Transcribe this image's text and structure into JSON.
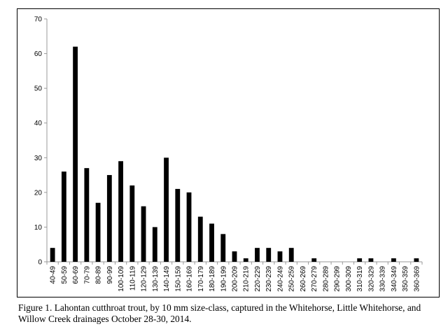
{
  "caption": "Figure 1. Lahontan cutthroat trout, by 10 mm size-class, captured in the Whitehorse, Little Whitehorse, and Willow Creek drainages October 28-30, 2014.",
  "colors": {
    "bar": "#000000",
    "axis": "#999999",
    "background": "#ffffff"
  },
  "chart_data": {
    "type": "bar",
    "title": "",
    "xlabel": "",
    "ylabel": "",
    "ylim": [
      0,
      70
    ],
    "yticks": [
      0,
      10,
      20,
      30,
      40,
      50,
      60,
      70
    ],
    "grid": false,
    "legend": "none",
    "categories": [
      "40-49",
      "50-59",
      "60-69",
      "70-79",
      "80-89",
      "90-99",
      "100-109",
      "110-119",
      "120-129",
      "130-139",
      "140-149",
      "150-159",
      "160-169",
      "170-179",
      "180-189",
      "190-199",
      "200-209",
      "210-219",
      "220-229",
      "230-239",
      "240-249",
      "250-259",
      "260-269",
      "270-279",
      "280-289",
      "290-299",
      "300-309",
      "310-319",
      "320-329",
      "330-339",
      "340-349",
      "350-359",
      "360-369"
    ],
    "values": [
      4,
      26,
      62,
      27,
      17,
      25,
      29,
      22,
      16,
      10,
      30,
      21,
      20,
      13,
      11,
      8,
      3,
      1,
      4,
      4,
      3,
      4,
      0,
      1,
      0,
      0,
      0,
      1,
      1,
      0,
      1,
      0,
      1
    ]
  }
}
